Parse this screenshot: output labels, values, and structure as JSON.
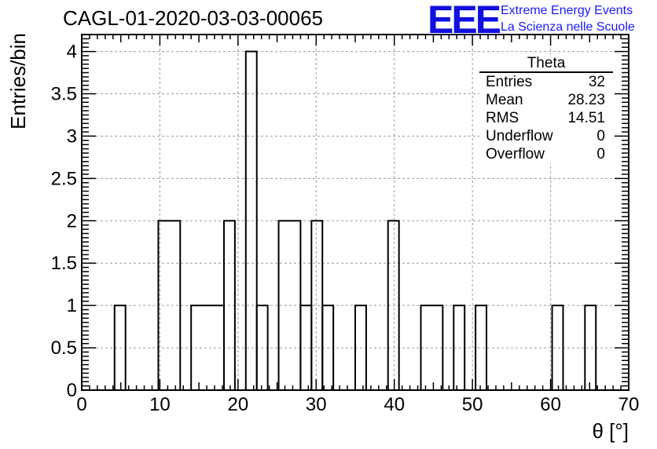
{
  "title": "CAGL-01-2020-03-03-00065",
  "logo": {
    "mark": "EEE",
    "line1": "Extreme Energy Events",
    "line2": "La Scienza nelle Scuole",
    "color": "#1a1aff"
  },
  "stats": {
    "name": "Theta",
    "rows": [
      {
        "label": "Entries",
        "value": "32"
      },
      {
        "label": "Mean",
        "value": "28.23"
      },
      {
        "label": "RMS",
        "value": "14.51"
      },
      {
        "label": "Underflow",
        "value": "0"
      },
      {
        "label": "Overflow",
        "value": "0"
      }
    ]
  },
  "chart_data": {
    "type": "histogram",
    "title": "CAGL-01-2020-03-03-00065",
    "xlabel": "θ [°]",
    "ylabel": "Entries/bin",
    "xlim": [
      0,
      70
    ],
    "ylim": [
      0,
      4.2
    ],
    "xticks": [
      0,
      10,
      20,
      30,
      40,
      50,
      60,
      70
    ],
    "yticks": [
      0,
      0.5,
      1,
      1.5,
      2,
      2.5,
      3,
      3.5,
      4
    ],
    "ytick_labels": [
      "0",
      "0.5",
      "1",
      "1.5",
      "2",
      "2.5",
      "3",
      "3.5",
      "4"
    ],
    "grid": true,
    "bins": [
      {
        "x0": 4.2,
        "x1": 5.6,
        "count": 1
      },
      {
        "x0": 9.8,
        "x1": 12.6,
        "count": 2
      },
      {
        "x0": 14.0,
        "x1": 18.2,
        "count": 1
      },
      {
        "x0": 18.2,
        "x1": 19.6,
        "count": 2
      },
      {
        "x0": 21.0,
        "x1": 22.4,
        "count": 4
      },
      {
        "x0": 22.4,
        "x1": 23.8,
        "count": 1
      },
      {
        "x0": 25.2,
        "x1": 28.0,
        "count": 2
      },
      {
        "x0": 28.0,
        "x1": 29.4,
        "count": 1
      },
      {
        "x0": 29.4,
        "x1": 30.8,
        "count": 2
      },
      {
        "x0": 30.8,
        "x1": 32.2,
        "count": 1
      },
      {
        "x0": 35.0,
        "x1": 36.4,
        "count": 1
      },
      {
        "x0": 39.2,
        "x1": 40.6,
        "count": 2
      },
      {
        "x0": 43.4,
        "x1": 46.2,
        "count": 1
      },
      {
        "x0": 47.6,
        "x1": 49.0,
        "count": 1
      },
      {
        "x0": 50.4,
        "x1": 51.8,
        "count": 1
      },
      {
        "x0": 60.2,
        "x1": 61.6,
        "count": 1
      },
      {
        "x0": 64.4,
        "x1": 65.8,
        "count": 1
      }
    ]
  }
}
